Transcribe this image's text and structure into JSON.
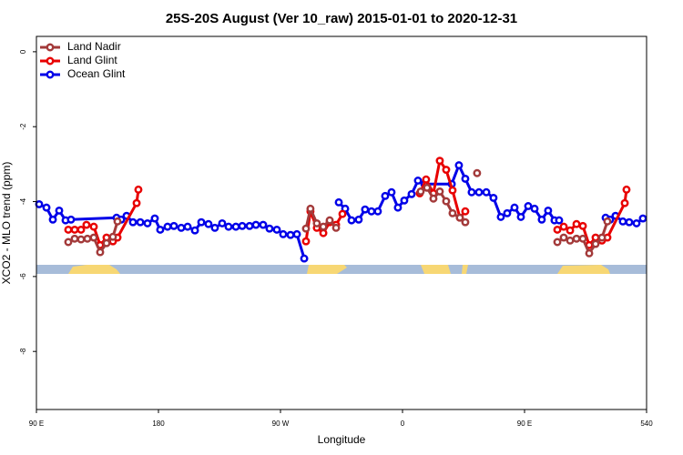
{
  "chart_data": {
    "type": "line",
    "title": "25S-20S August (Ver 10_raw)   2015-01-01 to 2020-12-31",
    "xlabel": "Longitude",
    "ylabel": "XCO2 - MLO trend (ppm)",
    "xlim": [
      90,
      540
    ],
    "ylim": [
      -9.55,
      0.41
    ],
    "xticks": [
      {
        "value": 90,
        "label": "90 E"
      },
      180,
      {
        "value": 270,
        "label": "90 W"
      },
      {
        "value": 360,
        "label": "0"
      },
      {
        "value": 450,
        "label": "90 E"
      },
      540
    ],
    "yticks": [
      0,
      -2,
      -4,
      -6,
      -8
    ],
    "legend": "top-left",
    "series": [
      {
        "name": "Land Nadir",
        "color": "#a33a3a",
        "x": [
          113.5,
          118.2,
          122.9,
          127.6,
          132.3,
          137.0,
          141.7,
          146.4,
          149.8,
          null,
          288.8,
          292.1,
          296.8,
          301.6,
          306.3,
          311.0,
          null,
          373.4,
          378.1,
          382.8,
          387.5,
          392.2,
          396.9,
          402.3,
          406.3,
          null,
          415.0,
          null,
          474.2,
          478.9,
          483.6,
          488.3,
          493.0,
          497.7,
          502.4,
          507.1,
          511.1
        ],
        "values": [
          -5.08,
          -4.99,
          -5.01,
          -4.99,
          -4.96,
          -5.35,
          -5.11,
          -4.94,
          -4.53,
          null,
          -4.72,
          -4.19,
          -4.58,
          -4.67,
          -4.5,
          -4.7,
          null,
          -3.73,
          -3.63,
          -3.92,
          -3.73,
          -3.99,
          -4.31,
          -4.43,
          -4.55,
          null,
          -3.24,
          null,
          -5.08,
          -4.96,
          -5.04,
          -4.99,
          -4.99,
          -5.38,
          -5.13,
          -4.96,
          -4.53
        ]
      },
      {
        "name": "Land Glint",
        "color": "#e80000",
        "x": [
          113.5,
          118.2,
          122.9,
          126.9,
          132.3,
          137.0,
          141.7,
          146.4,
          149.8,
          163.9,
          165.2,
          null,
          288.8,
          292.1,
          296.8,
          301.6,
          306.3,
          311.0,
          315.7,
          null,
          372.7,
          377.4,
          382.8,
          387.5,
          392.2,
          396.9,
          402.3,
          406.3,
          null,
          474.2,
          478.9,
          483.6,
          488.3,
          493.0,
          497.7,
          502.4,
          507.1,
          511.1,
          523.9,
          525.2
        ],
        "values": [
          -4.75,
          -4.75,
          -4.75,
          -4.62,
          -4.67,
          -5.16,
          -4.96,
          -5.06,
          -4.96,
          -4.04,
          -3.68,
          null,
          -5.06,
          -4.26,
          -4.7,
          -4.84,
          -4.55,
          -4.62,
          -4.33,
          null,
          -3.78,
          -3.41,
          -3.78,
          -2.91,
          -3.15,
          -3.7,
          -4.43,
          -4.26,
          null,
          -4.75,
          -4.67,
          -4.77,
          -4.6,
          -4.65,
          -5.16,
          -4.96,
          -5.04,
          -4.96,
          -4.04,
          -3.68
        ]
      },
      {
        "name": "Ocean Glint",
        "color": "#0000e8",
        "x": [
          92.0,
          97.4,
          102.1,
          106.8,
          111.5,
          115.5,
          149.1,
          152.5,
          156.5,
          161.2,
          166.6,
          171.9,
          177.3,
          181.3,
          186.7,
          191.4,
          196.8,
          201.5,
          206.9,
          211.6,
          216.9,
          221.6,
          227.0,
          231.7,
          237.1,
          241.8,
          247.2,
          251.9,
          257.2,
          261.9,
          267.3,
          272.0,
          277.4,
          282.1,
          287.5,
          null,
          313.0,
          317.7,
          322.4,
          327.7,
          332.4,
          337.1,
          341.8,
          347.2,
          351.9,
          356.6,
          361.3,
          366.7,
          371.4,
          376.1,
          396.3,
          401.6,
          406.3,
          411.0,
          416.4,
          421.8,
          427.1,
          432.5,
          437.2,
          442.6,
          447.3,
          452.7,
          457.4,
          462.7,
          467.4,
          472.1,
          475.5,
          null,
          509.8,
          513.1,
          517.1,
          522.5,
          527.2,
          532.6,
          537.3
        ],
        "values": [
          -4.07,
          -4.16,
          -4.48,
          -4.24,
          -4.5,
          -4.48,
          -4.43,
          -4.48,
          -4.38,
          -4.55,
          -4.55,
          -4.58,
          -4.45,
          -4.75,
          -4.67,
          -4.65,
          -4.7,
          -4.67,
          -4.77,
          -4.55,
          -4.6,
          -4.7,
          -4.58,
          -4.67,
          -4.67,
          -4.65,
          -4.65,
          -4.62,
          -4.62,
          -4.72,
          -4.75,
          -4.87,
          -4.89,
          -4.87,
          -5.52,
          null,
          -4.02,
          -4.19,
          -4.5,
          -4.48,
          -4.21,
          -4.26,
          -4.26,
          -3.85,
          -3.75,
          -4.16,
          -3.97,
          -3.8,
          -3.44,
          -3.53,
          -3.53,
          -3.03,
          -3.39,
          -3.75,
          -3.75,
          -3.75,
          -3.9,
          -4.41,
          -4.31,
          -4.16,
          -4.41,
          -4.12,
          -4.19,
          -4.48,
          -4.24,
          -4.5,
          -4.5,
          null,
          -4.43,
          -4.48,
          -4.38,
          -4.53,
          -4.55,
          -4.58,
          -4.45
        ]
      }
    ]
  }
}
